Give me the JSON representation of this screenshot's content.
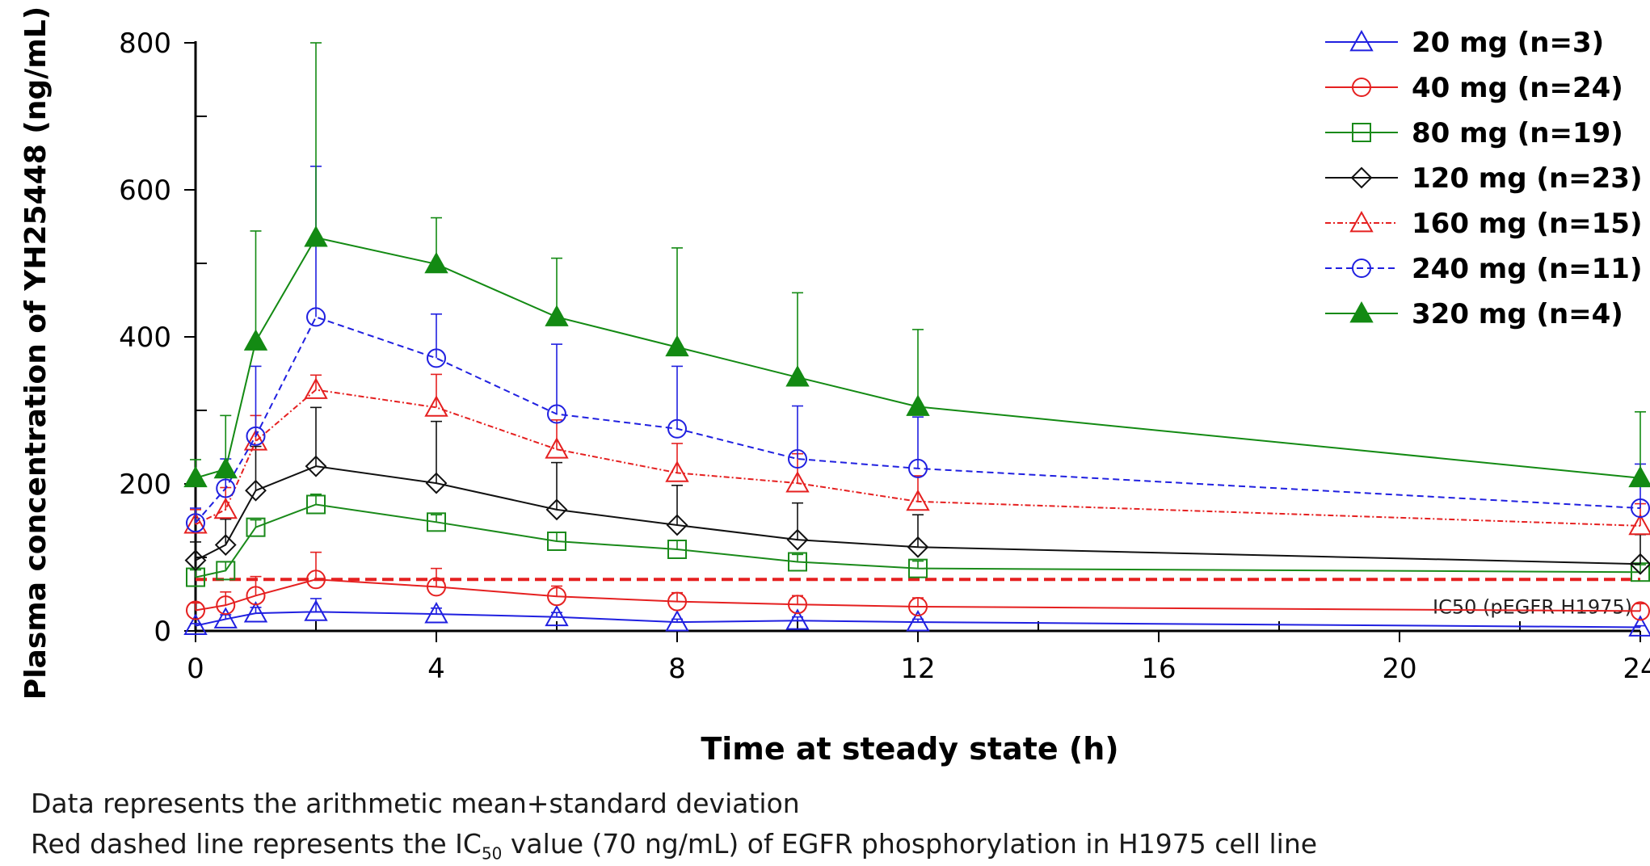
{
  "chart_data": {
    "type": "line",
    "xlabel": "Time at steady state (h)",
    "ylabel": "Plasma concentration of YH25448 (ng/mL)",
    "xlim": [
      0,
      24
    ],
    "ylim": [
      0,
      800
    ],
    "x_ticks": [
      0,
      4,
      8,
      12,
      16,
      20,
      24
    ],
    "y_ticks": [
      0,
      200,
      400,
      600,
      800
    ],
    "legend_position": "top-right",
    "x": [
      0,
      0.5,
      1,
      2,
      4,
      6,
      8,
      10,
      12,
      24
    ],
    "series": [
      {
        "name": "20 mg (n=3)",
        "color": "#2020e0",
        "marker": "triangle-open",
        "dash": "solid",
        "values": [
          7,
          16,
          24,
          26,
          23,
          19,
          12,
          14,
          12,
          5
        ],
        "sd": [
          3,
          6,
          8,
          18,
          8,
          6,
          4,
          5,
          4,
          2
        ]
      },
      {
        "name": "40 mg (n=24)",
        "color": "#e52020",
        "marker": "circle-open",
        "dash": "solid",
        "values": [
          28,
          35,
          48,
          70,
          60,
          47,
          40,
          36,
          33,
          27
        ],
        "sd": [
          10,
          18,
          26,
          37,
          25,
          14,
          12,
          12,
          12,
          10
        ]
      },
      {
        "name": "80 mg (n=19)",
        "color": "#1a8a1a",
        "marker": "square-open",
        "dash": "solid",
        "values": [
          73,
          82,
          141,
          172,
          148,
          122,
          111,
          94,
          85,
          80
        ],
        "sd": [
          10,
          12,
          10,
          14,
          10,
          12,
          12,
          10,
          10,
          10
        ]
      },
      {
        "name": "120 mg (n=23)",
        "color": "#111111",
        "marker": "diamond-open",
        "dash": "solid",
        "values": [
          96,
          117,
          191,
          224,
          201,
          165,
          144,
          124,
          114,
          91
        ],
        "sd": [
          25,
          35,
          60,
          80,
          84,
          64,
          54,
          50,
          44,
          40
        ]
      },
      {
        "name": "160 mg (n=15)",
        "color": "#e52020",
        "marker": "triangle-open",
        "dash": "dashdot",
        "values": [
          145,
          165,
          258,
          328,
          304,
          247,
          215,
          201,
          176,
          143
        ],
        "sd": [
          20,
          30,
          35,
          20,
          45,
          40,
          40,
          40,
          35,
          30
        ]
      },
      {
        "name": "240 mg (n=11)",
        "color": "#2020e0",
        "marker": "circle-open",
        "dash": "dash",
        "values": [
          147,
          194,
          265,
          427,
          371,
          295,
          275,
          234,
          221,
          167
        ],
        "sd": [
          20,
          40,
          95,
          205,
          60,
          95,
          85,
          72,
          70,
          60
        ]
      },
      {
        "name": "320 mg (n=4)",
        "color": "#138a13",
        "marker": "triangle-filled",
        "dash": "solid",
        "values": [
          208,
          220,
          394,
          535,
          499,
          427,
          386,
          345,
          305,
          208
        ],
        "sd": [
          25,
          73,
          150,
          265,
          63,
          80,
          135,
          115,
          105,
          90
        ]
      }
    ],
    "reference_line": {
      "label": "IC50 (pEGFR H1975)",
      "y": 70,
      "color": "#e52020",
      "dash": "dash"
    }
  },
  "footnotes": {
    "line1": "Data represents the arithmetic mean+standard deviation",
    "line2_before": "Red dashed line represents the IC",
    "line2_sub": "50",
    "line2_after": " value (70 ng/mL) of EGFR phosphorylation in H1975 cell line"
  }
}
